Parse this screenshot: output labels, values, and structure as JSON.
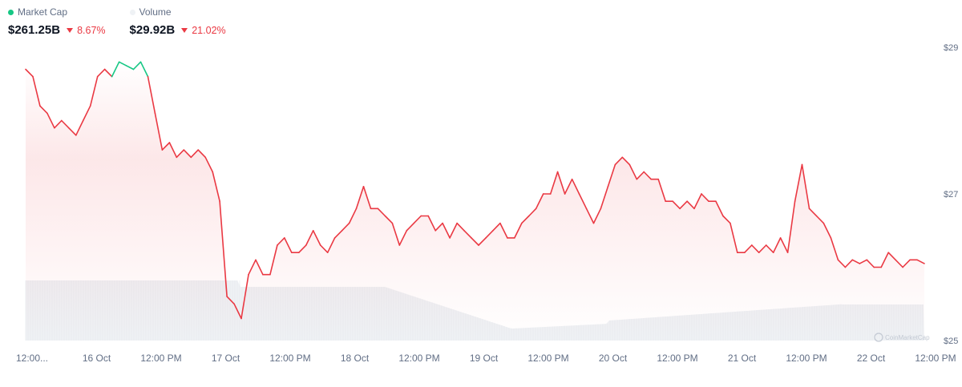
{
  "legend": {
    "market_cap": {
      "label": "Market Cap",
      "value": "$261.25B",
      "change": "8.67%",
      "dot_color": "#16c784"
    },
    "volume": {
      "label": "Volume",
      "value": "$29.92B",
      "change": "21.02%",
      "dot_color": "#eff2f5"
    }
  },
  "colors": {
    "up": "#16c784",
    "down": "#ea3943",
    "volume_bar": "#eff2f5",
    "axis_text": "#616e85"
  },
  "watermark": "CoinMarketCap",
  "chart_data": {
    "type": "line",
    "title": "",
    "x_labels": [
      "12:00...",
      "16 Oct",
      "12:00 PM",
      "17 Oct",
      "12:00 PM",
      "18 Oct",
      "12:00 PM",
      "19 Oct",
      "12:00 PM",
      "20 Oct",
      "12:00 PM",
      "21 Oct",
      "12:00 PM",
      "22 Oct",
      "12:00 PM"
    ],
    "y_tick_labels": [
      "$29",
      "$27",
      "$25"
    ],
    "ylim": [
      25,
      29
    ],
    "legend_placement": "top-left",
    "series": [
      {
        "name": "Market Cap",
        "baseline": 28.7,
        "values": [
          28.7,
          28.6,
          28.2,
          28.1,
          27.9,
          28.0,
          27.9,
          27.8,
          28.0,
          28.2,
          28.6,
          28.7,
          28.6,
          28.8,
          28.75,
          28.7,
          28.8,
          28.6,
          28.1,
          27.6,
          27.7,
          27.5,
          27.6,
          27.5,
          27.6,
          27.5,
          27.3,
          26.9,
          25.6,
          25.5,
          25.3,
          25.9,
          26.1,
          25.9,
          25.9,
          26.3,
          26.4,
          26.2,
          26.2,
          26.3,
          26.5,
          26.3,
          26.2,
          26.4,
          26.5,
          26.6,
          26.8,
          27.1,
          26.8,
          26.8,
          26.7,
          26.6,
          26.3,
          26.5,
          26.6,
          26.7,
          26.7,
          26.5,
          26.6,
          26.4,
          26.6,
          26.5,
          26.4,
          26.3,
          26.4,
          26.5,
          26.6,
          26.4,
          26.4,
          26.6,
          26.7,
          26.8,
          27.0,
          27.0,
          27.3,
          27.0,
          27.2,
          27.0,
          26.8,
          26.6,
          26.8,
          27.1,
          27.4,
          27.5,
          27.4,
          27.2,
          27.3,
          27.2,
          27.2,
          26.9,
          26.9,
          26.8,
          26.9,
          26.8,
          27.0,
          26.9,
          26.9,
          26.7,
          26.6,
          26.2,
          26.2,
          26.3,
          26.2,
          26.3,
          26.2,
          26.4,
          26.2,
          26.9,
          27.4,
          26.8,
          26.7,
          26.6,
          26.4,
          26.1,
          26.0,
          26.1,
          26.05,
          26.1,
          26.0,
          26.0,
          26.2,
          26.1,
          26.0,
          26.1,
          26.1,
          26.05
        ]
      }
    ]
  }
}
